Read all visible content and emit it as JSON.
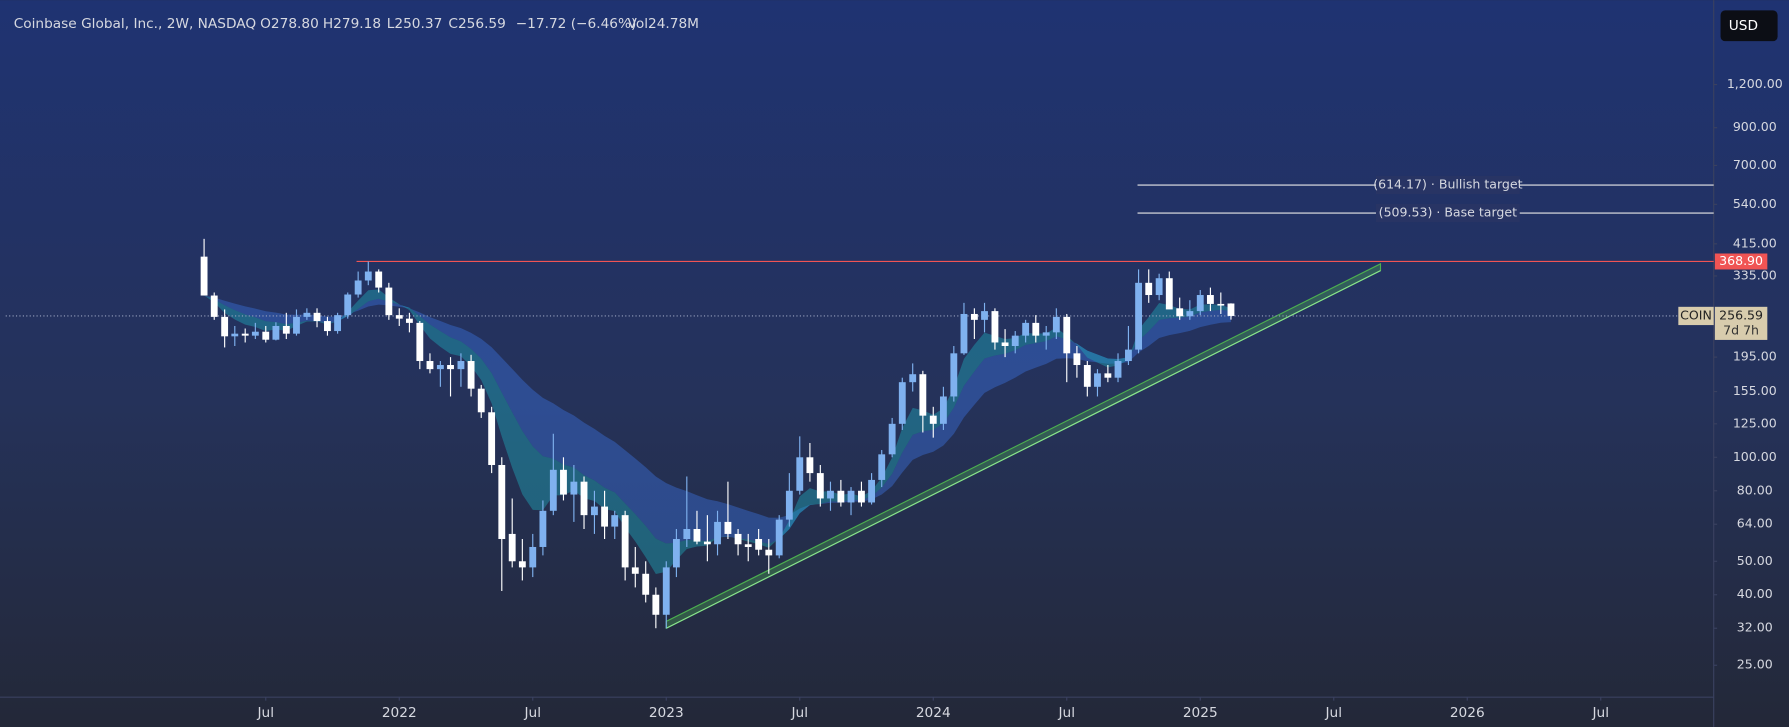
{
  "header": {
    "symbol": "Coinbase Global, Inc., 2W, NASDAQ",
    "open": "O278.80",
    "high": "H279.18",
    "low": "L250.37",
    "close": "C256.59",
    "change": "−17.72 (−6.46%)",
    "volume": "Vol24.78M",
    "currency": "USD"
  },
  "chart_data": {
    "type": "candlestick",
    "log_scale": true,
    "x": [
      2021.269,
      2021.307,
      2021.346,
      2021.384,
      2021.423,
      2021.461,
      2021.5,
      2021.538,
      2021.577,
      2021.615,
      2021.654,
      2021.692,
      2021.731,
      2021.769,
      2021.807,
      2021.846,
      2021.884,
      2021.923,
      2021.961,
      2022.0,
      2022.038,
      2022.077,
      2022.115,
      2022.154,
      2022.192,
      2022.231,
      2022.269,
      2022.307,
      2022.346,
      2022.384,
      2022.423,
      2022.461,
      2022.5,
      2022.538,
      2022.577,
      2022.615,
      2022.654,
      2022.692,
      2022.731,
      2022.769,
      2022.807,
      2022.846,
      2022.884,
      2022.923,
      2022.961,
      2023.0,
      2023.038,
      2023.077,
      2023.115,
      2023.154,
      2023.192,
      2023.231,
      2023.269,
      2023.307,
      2023.346,
      2023.384,
      2023.423,
      2023.461,
      2023.5,
      2023.538,
      2023.577,
      2023.615,
      2023.654,
      2023.692,
      2023.731,
      2023.769,
      2023.807,
      2023.846,
      2023.884,
      2023.923,
      2023.961,
      2024.0,
      2024.038,
      2024.077,
      2024.115,
      2024.154,
      2024.192,
      2024.231,
      2024.269,
      2024.307,
      2024.346,
      2024.384,
      2024.423,
      2024.461,
      2024.5,
      2024.538,
      2024.577,
      2024.615,
      2024.654,
      2024.692,
      2024.731,
      2024.769,
      2024.807,
      2024.846,
      2024.884,
      2024.923,
      2024.961,
      2025.0,
      2025.038,
      2025.077,
      2025.115
    ],
    "open": [
      381,
      294,
      255,
      224,
      228,
      225,
      231,
      219,
      240,
      228,
      255,
      262,
      248,
      232,
      258,
      296,
      325,
      345,
      310,
      258,
      252,
      245,
      190,
      180,
      185,
      180,
      190,
      158,
      135,
      95,
      60,
      50,
      48,
      55,
      70,
      92,
      78,
      85,
      68,
      72,
      63,
      68,
      48,
      46,
      40,
      35,
      48,
      58,
      62,
      57,
      56,
      65,
      60,
      56,
      58,
      54,
      52,
      66,
      80,
      100,
      90,
      76,
      80,
      74,
      80,
      74,
      86,
      102,
      125,
      165,
      174,
      132,
      125,
      150,
      200,
      260,
      250,
      265,
      215,
      210,
      225,
      245,
      225,
      230,
      255,
      200,
      185,
      160,
      175,
      170,
      190,
      205,
      320,
      295,
      330,
      270,
      256,
      265,
      295,
      278,
      278.8
    ],
    "high": [
      429,
      300,
      268,
      240,
      236,
      245,
      240,
      246,
      262,
      268,
      270,
      270,
      255,
      262,
      300,
      345,
      368.9,
      350,
      320,
      270,
      262,
      248,
      200,
      190,
      195,
      200,
      198,
      162,
      140,
      100,
      76,
      58,
      60,
      75,
      117,
      100,
      95,
      88,
      80,
      80,
      70,
      70,
      55,
      50,
      42,
      50,
      62,
      88,
      70,
      68,
      70,
      85,
      62,
      60,
      62,
      58,
      68,
      90,
      115,
      110,
      95,
      85,
      86,
      82,
      85,
      90,
      105,
      130,
      170,
      187,
      178,
      140,
      160,
      210,
      280,
      270,
      280,
      270,
      235,
      232,
      250,
      258,
      240,
      270,
      260,
      210,
      190,
      180,
      185,
      200,
      240,
      350,
      350,
      340,
      345,
      290,
      285,
      305,
      310,
      300,
      279.18
    ],
    "low": [
      310,
      250,
      208,
      210,
      215,
      220,
      215,
      218,
      220,
      225,
      250,
      238,
      225,
      228,
      252,
      290,
      315,
      300,
      250,
      240,
      230,
      180,
      175,
      160,
      150,
      160,
      150,
      130,
      90,
      41,
      48,
      44,
      45,
      52,
      68,
      75,
      65,
      62,
      60,
      58,
      58,
      44,
      42,
      38,
      32,
      32,
      45,
      55,
      56,
      50,
      52,
      58,
      52,
      50,
      52,
      46,
      51,
      63,
      78,
      85,
      72,
      70,
      72,
      68,
      72,
      73,
      82,
      100,
      120,
      155,
      118,
      114,
      120,
      145,
      198,
      220,
      230,
      205,
      195,
      200,
      215,
      215,
      205,
      220,
      165,
      170,
      150,
      150,
      165,
      165,
      185,
      200,
      280,
      285,
      270,
      250,
      250,
      258,
      265,
      260,
      250.37
    ],
    "close": [
      294,
      255,
      224,
      228,
      225,
      231,
      219,
      240,
      228,
      255,
      262,
      248,
      232,
      258,
      296,
      325,
      345,
      310,
      258,
      252,
      245,
      190,
      180,
      185,
      180,
      190,
      158,
      135,
      95,
      58,
      50,
      48,
      55,
      70,
      92,
      78,
      85,
      68,
      72,
      63,
      68,
      48,
      46,
      40,
      35,
      48,
      58,
      62,
      57,
      56,
      65,
      60,
      56,
      55,
      54,
      52,
      66,
      80,
      100,
      90,
      76,
      80,
      74,
      80,
      74,
      86,
      102,
      125,
      165,
      174,
      132,
      125,
      150,
      200,
      260,
      250,
      265,
      215,
      210,
      225,
      245,
      225,
      230,
      255,
      200,
      185,
      160,
      175,
      170,
      190,
      205,
      320,
      295,
      330,
      268,
      256,
      265,
      295,
      278,
      275,
      256.59
    ],
    "up_color": "#7fb1ef",
    "down_color": "#ffffff",
    "xlim": [
      2020.526,
      2026.923
    ],
    "xticks": [
      {
        "value": 2021.5,
        "label": "Jul"
      },
      {
        "value": 2022,
        "label": "2022"
      },
      {
        "value": 2022.5,
        "label": "Jul"
      },
      {
        "value": 2023,
        "label": "2023"
      },
      {
        "value": 2023.5,
        "label": "Jul"
      },
      {
        "value": 2024,
        "label": "2024"
      },
      {
        "value": 2024.5,
        "label": "Jul"
      },
      {
        "value": 2025,
        "label": "2025"
      },
      {
        "value": 2025.5,
        "label": "Jul"
      },
      {
        "value": 2026,
        "label": "2026"
      },
      {
        "value": 2026.5,
        "label": "Jul"
      }
    ],
    "ylim": [
      20.2,
      2107
    ],
    "yticks": [
      {
        "value": 1200,
        "label": "1,200.00"
      },
      {
        "value": 900,
        "label": "900.00"
      },
      {
        "value": 700,
        "label": "700.00"
      },
      {
        "value": 540,
        "label": "540.00"
      },
      {
        "value": 415,
        "label": "415.00"
      },
      {
        "value": 335,
        "label": "335.00"
      },
      {
        "value": 195,
        "label": "195.00"
      },
      {
        "value": 155,
        "label": "155.00"
      },
      {
        "value": 125,
        "label": "125.00"
      },
      {
        "value": 100,
        "label": "100.00"
      },
      {
        "value": 80,
        "label": "80.00"
      },
      {
        "value": 64,
        "label": "64.00"
      },
      {
        "value": 50,
        "label": "50.00"
      },
      {
        "value": 40,
        "label": "40.00"
      },
      {
        "value": 32,
        "label": "32.00"
      },
      {
        "value": 25,
        "label": "25.00"
      }
    ],
    "resistance": {
      "value": 368.9,
      "label": "368.90",
      "x_start": 2021.84,
      "color": "#f05454"
    },
    "targets": [
      {
        "value": 614.17,
        "label": "(614.17) · Bullish target",
        "x_start": 2024.765
      },
      {
        "value": 509.53,
        "label": "(509.53) · Base target",
        "x_start": 2024.765
      }
    ],
    "trendline": {
      "x": [
        2023.0,
        2025.675
      ],
      "y": [
        32,
        347
      ],
      "color": "#4caf50"
    },
    "last_price": {
      "symbol": "COIN",
      "value": 256.59,
      "label": "256.59",
      "countdown": "7d 7h"
    }
  }
}
